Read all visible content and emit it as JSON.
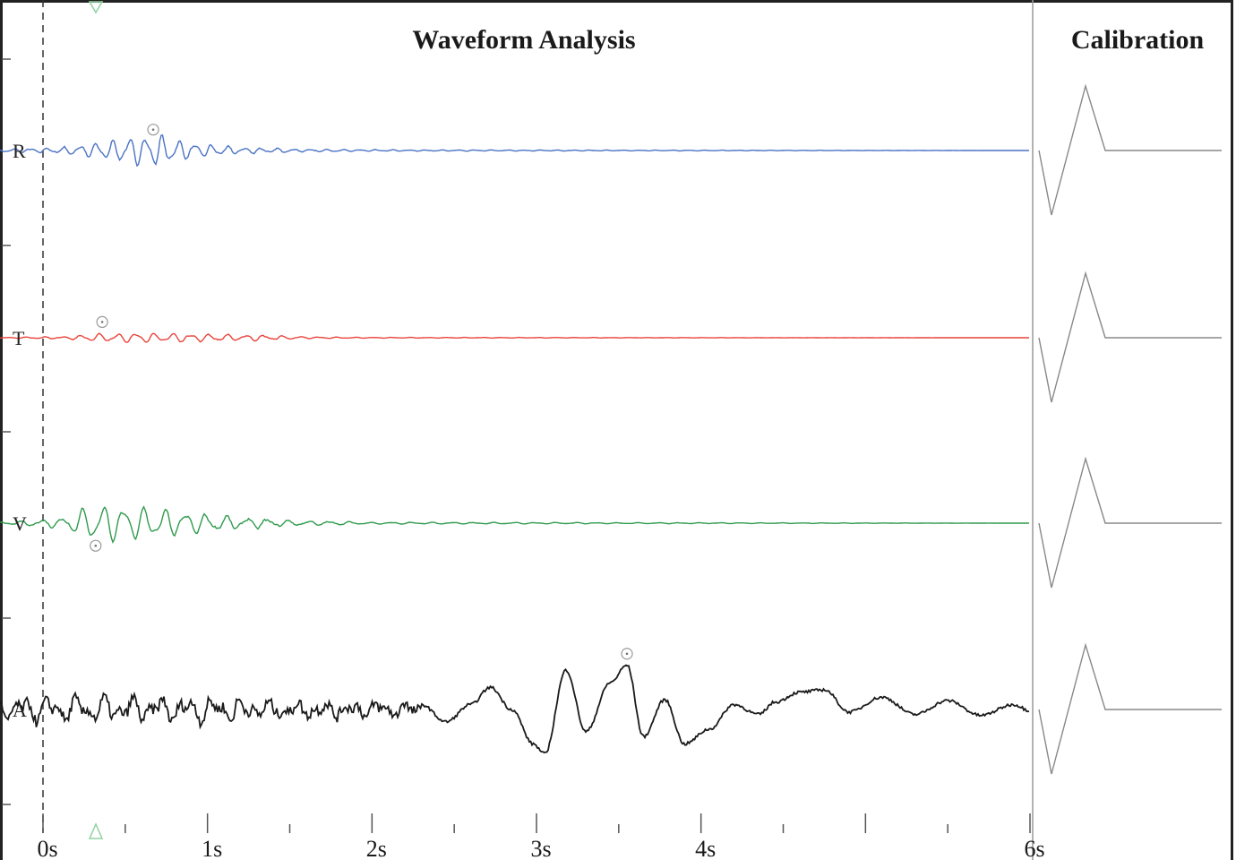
{
  "chart_data": [
    {
      "type": "line",
      "title": "Waveform Analysis",
      "x_unit": "s",
      "xlim": [
        0,
        6
      ],
      "x_ticks": [
        {
          "value": 0,
          "label": "0s"
        },
        {
          "value": 1,
          "label": "1s"
        },
        {
          "value": 2,
          "label": "2s"
        },
        {
          "value": 3,
          "label": "3s"
        },
        {
          "value": 4,
          "label": "4s"
        },
        {
          "value": 6,
          "label": "6s"
        }
      ],
      "trigger_time": 0,
      "series": [
        {
          "name": "R",
          "color": "#4a72c4",
          "peak_marker": {
            "t": 0.67,
            "direction": "up"
          },
          "envelope": [
            {
              "t": -0.2,
              "amp": 0.1
            },
            {
              "t": 0.1,
              "amp": 0.18
            },
            {
              "t": 0.3,
              "amp": 0.45
            },
            {
              "t": 0.55,
              "amp": 0.85
            },
            {
              "t": 0.7,
              "amp": 1.0
            },
            {
              "t": 0.9,
              "amp": 0.45
            },
            {
              "t": 1.2,
              "amp": 0.2
            },
            {
              "t": 1.6,
              "amp": 0.08
            },
            {
              "t": 2.2,
              "amp": 0.04
            },
            {
              "t": 6.0,
              "amp": 0.0
            }
          ],
          "frequency_hz": 10
        },
        {
          "name": "T",
          "color": "#e8443a",
          "peak_marker": {
            "t": 0.36,
            "direction": "up"
          },
          "envelope": [
            {
              "t": -0.2,
              "amp": 0.05
            },
            {
              "t": 0.15,
              "amp": 0.15
            },
            {
              "t": 0.35,
              "amp": 0.45
            },
            {
              "t": 0.6,
              "amp": 0.5
            },
            {
              "t": 0.9,
              "amp": 0.45
            },
            {
              "t": 1.3,
              "amp": 0.3
            },
            {
              "t": 1.6,
              "amp": 0.1
            },
            {
              "t": 2.0,
              "amp": 0.04
            },
            {
              "t": 6.0,
              "amp": 0.0
            }
          ],
          "frequency_hz": 9
        },
        {
          "name": "V",
          "color": "#2f9a4c",
          "peak_marker": {
            "t": 0.32,
            "direction": "down"
          },
          "envelope": [
            {
              "t": -0.2,
              "amp": 0.08
            },
            {
              "t": 0.1,
              "amp": 0.25
            },
            {
              "t": 0.3,
              "amp": 1.0
            },
            {
              "t": 0.5,
              "amp": 0.95
            },
            {
              "t": 0.8,
              "amp": 0.7
            },
            {
              "t": 1.1,
              "amp": 0.4
            },
            {
              "t": 1.5,
              "amp": 0.15
            },
            {
              "t": 2.0,
              "amp": 0.05
            },
            {
              "t": 6.0,
              "amp": 0.0
            }
          ],
          "frequency_hz": 8
        },
        {
          "name": "A",
          "color": "#1a1a1a",
          "peak_marker": {
            "t": 3.55,
            "direction": "up"
          },
          "samples": [
            {
              "t": 2.3,
              "v": 0.1
            },
            {
              "t": 2.45,
              "v": -0.25
            },
            {
              "t": 2.6,
              "v": 0.1
            },
            {
              "t": 2.72,
              "v": 0.45
            },
            {
              "t": 2.85,
              "v": 0.0
            },
            {
              "t": 2.98,
              "v": -0.7
            },
            {
              "t": 3.05,
              "v": -0.9
            },
            {
              "t": 3.18,
              "v": 0.8
            },
            {
              "t": 3.3,
              "v": -0.45
            },
            {
              "t": 3.45,
              "v": 0.55
            },
            {
              "t": 3.55,
              "v": 0.9
            },
            {
              "t": 3.65,
              "v": -0.55
            },
            {
              "t": 3.78,
              "v": 0.2
            },
            {
              "t": 3.9,
              "v": -0.7
            },
            {
              "t": 4.05,
              "v": -0.4
            },
            {
              "t": 4.2,
              "v": 0.1
            },
            {
              "t": 4.35,
              "v": -0.1
            },
            {
              "t": 4.45,
              "v": 0.15
            },
            {
              "t": 4.6,
              "v": 0.35
            },
            {
              "t": 4.75,
              "v": 0.4
            },
            {
              "t": 4.9,
              "v": -0.05
            },
            {
              "t": 5.1,
              "v": 0.25
            },
            {
              "t": 5.3,
              "v": -0.1
            },
            {
              "t": 5.5,
              "v": 0.18
            },
            {
              "t": 5.7,
              "v": -0.12
            },
            {
              "t": 5.9,
              "v": 0.1
            },
            {
              "t": 6.0,
              "v": -0.02
            }
          ],
          "pre_event_noise_amp": 0.18
        }
      ]
    },
    {
      "type": "line",
      "title": "Calibration",
      "series": [
        {
          "name": "R",
          "color": "#888888",
          "pulse": [
            0,
            -1,
            1,
            0
          ]
        },
        {
          "name": "T",
          "color": "#888888",
          "pulse": [
            0,
            -1,
            1,
            0
          ]
        },
        {
          "name": "V",
          "color": "#888888",
          "pulse": [
            0,
            -1,
            1,
            0
          ]
        },
        {
          "name": "A",
          "color": "#888888",
          "pulse": [
            0,
            -1,
            1,
            0
          ]
        }
      ]
    }
  ]
}
